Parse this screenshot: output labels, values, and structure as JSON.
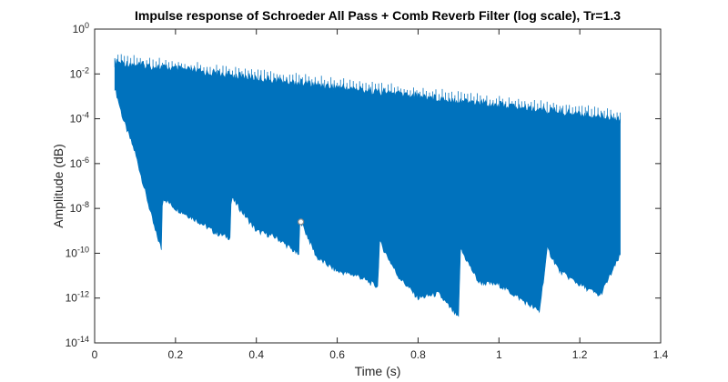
{
  "chart_data": {
    "type": "area",
    "title": "Impulse response of Schroeder All Pass + Comb Reverb Filter (log scale), Tr=1.3",
    "xlabel": "Time (s)",
    "ylabel": "Amplitude (dB)",
    "xlim": [
      0,
      1.4
    ],
    "ylim_exponent": [
      -14,
      0
    ],
    "yscale": "log",
    "x_ticks": [
      "0",
      "0.2",
      "0.4",
      "0.6",
      "0.8",
      "1",
      "1.2",
      "1.4"
    ],
    "y_ticks": [
      {
        "base": "10",
        "exp": "0",
        "value_exp": 0
      },
      {
        "base": "10",
        "exp": "-2",
        "value_exp": -2
      },
      {
        "base": "10",
        "exp": "-4",
        "value_exp": -4
      },
      {
        "base": "10",
        "exp": "-6",
        "value_exp": -6
      },
      {
        "base": "10",
        "exp": "-8",
        "value_exp": -8
      },
      {
        "base": "10",
        "exp": "-10",
        "value_exp": -10
      },
      {
        "base": "10",
        "exp": "-12",
        "value_exp": -12
      },
      {
        "base": "10",
        "exp": "-14",
        "value_exp": -14
      }
    ],
    "series_color": "#0072BD",
    "grid": false,
    "signal_start_s": 0.05,
    "signal_end_s": 1.3,
    "upper_envelope": {
      "x": [
        0.05,
        0.2,
        0.4,
        0.6,
        0.8,
        1.0,
        1.2,
        1.3
      ],
      "log10_y": [
        -1.3,
        -1.6,
        -2.0,
        -2.4,
        -2.8,
        -3.2,
        -3.6,
        -3.8
      ]
    },
    "lower_envelope": {
      "x": [
        0.05,
        0.07,
        0.1,
        0.15,
        0.165,
        0.168,
        0.2,
        0.25,
        0.3,
        0.335,
        0.338,
        0.4,
        0.45,
        0.5,
        0.505,
        0.508,
        0.55,
        0.6,
        0.65,
        0.7,
        0.705,
        0.75,
        0.8,
        0.85,
        0.9,
        0.905,
        0.95,
        1.0,
        1.05,
        1.1,
        1.12,
        1.15,
        1.2,
        1.25,
        1.3
      ],
      "log10_y": [
        -2.6,
        -4.0,
        -5.5,
        -9.0,
        -9.8,
        -7.5,
        -8.0,
        -8.5,
        -9.1,
        -9.3,
        -7.5,
        -9.0,
        -9.3,
        -10.0,
        -10.1,
        -8.5,
        -10.2,
        -10.8,
        -11.0,
        -11.5,
        -9.5,
        -11.0,
        -12.0,
        -11.8,
        -12.9,
        -9.8,
        -11.3,
        -11.4,
        -12.0,
        -12.6,
        -9.8,
        -10.8,
        -11.4,
        -11.9,
        -10.1
      ]
    },
    "annotation_marker": {
      "x": 0.51,
      "log10_y": -8.6
    }
  }
}
